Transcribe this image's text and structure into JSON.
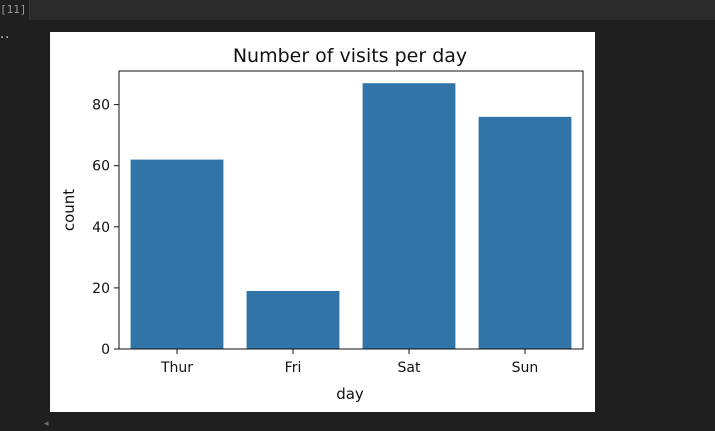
{
  "cell": {
    "prompt": "[11]",
    "output_toggle": "··"
  },
  "colors": {
    "background": "#1f1f1f",
    "bar": "#3174a8",
    "axis": "#111111",
    "text": "#111111"
  },
  "chart_data": {
    "type": "bar",
    "title": "Number of visits per day",
    "xlabel": "day",
    "ylabel": "count",
    "categories": [
      "Thur",
      "Fri",
      "Sat",
      "Sun"
    ],
    "values": [
      62,
      19,
      87,
      76
    ],
    "ylim": [
      0,
      91
    ],
    "yticks": [
      0,
      20,
      40,
      60,
      80
    ],
    "grid": false,
    "legend": "none"
  }
}
